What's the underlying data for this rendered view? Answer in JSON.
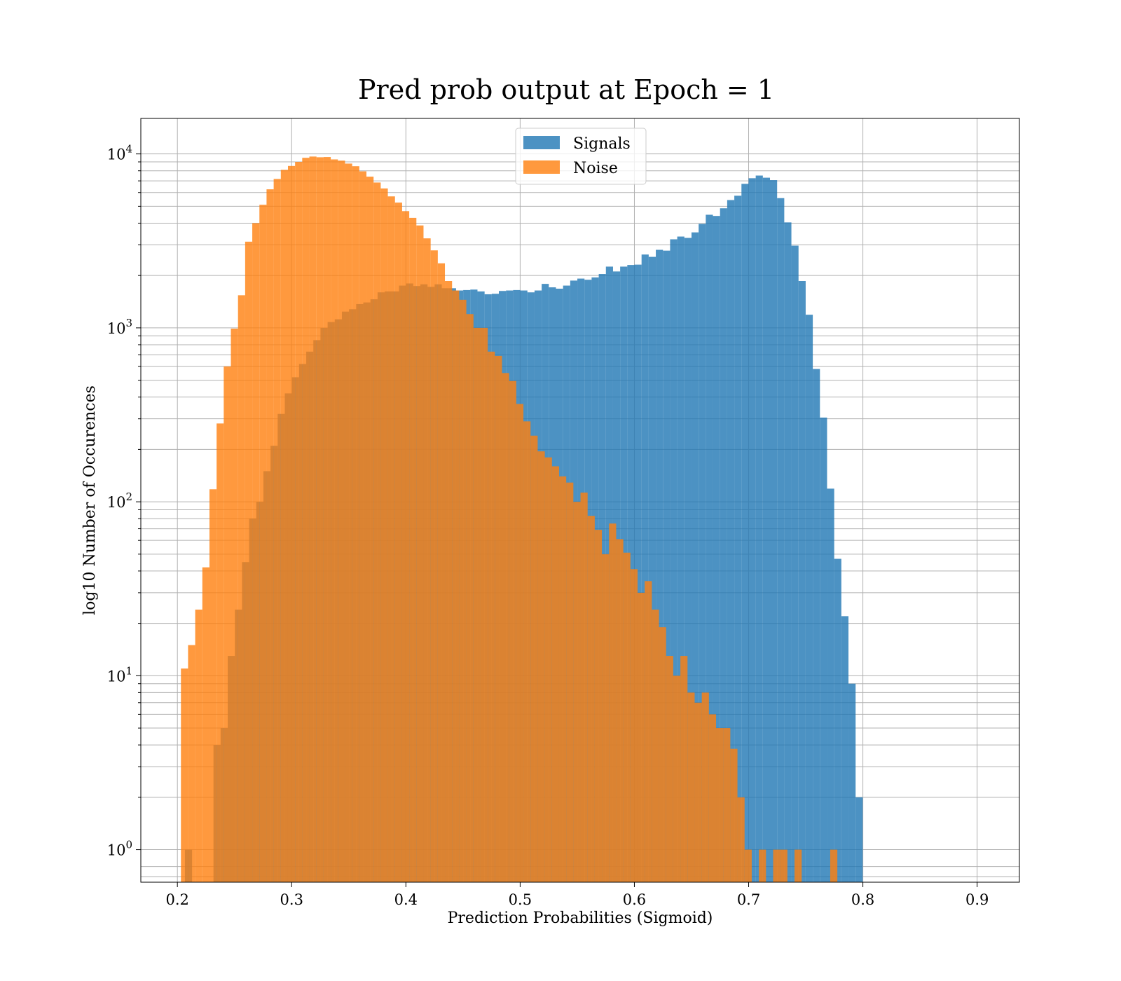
{
  "chart_data": {
    "type": "bar",
    "title": "Pred prob output at Epoch = 1",
    "xlabel": "Prediction Probabilities (Sigmoid)",
    "ylabel": "log10 Number of Occurences",
    "xlim": [
      0.168,
      0.937
    ],
    "ylim": [
      0.65,
      16000
    ],
    "yscale": "log",
    "grid": true,
    "legend_position": "top-center",
    "xticks": [
      0.2,
      0.3,
      0.4,
      0.5,
      0.6,
      0.7,
      0.8,
      0.9
    ],
    "xtick_labels": [
      "0.2",
      "0.3",
      "0.4",
      "0.5",
      "0.6",
      "0.7",
      "0.8",
      "0.9"
    ],
    "yticks": [
      {
        "value": 1,
        "base": "10",
        "exp": "0"
      },
      {
        "value": 10,
        "base": "10",
        "exp": "1"
      },
      {
        "value": 100,
        "base": "10",
        "exp": "2"
      },
      {
        "value": 1000,
        "base": "10",
        "exp": "3"
      },
      {
        "value": 10000,
        "base": "10",
        "exp": "4"
      }
    ],
    "series": [
      {
        "name": "Signals",
        "color": "#1f77b4",
        "opacity": 0.8,
        "bin_start": 0.2066,
        "bin_width": 0.006245,
        "values": [
          1,
          0,
          0,
          0,
          4,
          5,
          13,
          24,
          45,
          80,
          100,
          150,
          210,
          320,
          420,
          520,
          620,
          730,
          850,
          1000,
          1080,
          1120,
          1240,
          1280,
          1370,
          1400,
          1460,
          1600,
          1620,
          1620,
          1750,
          1800,
          1740,
          1780,
          1720,
          1780,
          1690,
          1690,
          1640,
          1650,
          1660,
          1620,
          1560,
          1570,
          1630,
          1640,
          1650,
          1640,
          1600,
          1640,
          1790,
          1710,
          1680,
          1750,
          1870,
          1920,
          1890,
          1950,
          2040,
          2250,
          2110,
          2250,
          2300,
          2310,
          2640,
          2560,
          2810,
          2780,
          3230,
          3350,
          3290,
          3540,
          3960,
          4470,
          4400,
          4870,
          5430,
          5750,
          6730,
          7250,
          7510,
          7300,
          7070,
          5570,
          4040,
          2970,
          1860,
          1190,
          580,
          305,
          119,
          47,
          22,
          9,
          2
        ]
      },
      {
        "name": "Noise",
        "color": "#ff7f0e",
        "opacity": 0.8,
        "bin_start": 0.2031,
        "bin_width": 0.006245,
        "values": [
          11,
          15,
          24,
          42,
          118,
          282,
          600,
          990,
          1540,
          3130,
          4000,
          5100,
          6260,
          7180,
          8100,
          8530,
          9000,
          9500,
          9660,
          9570,
          9600,
          9300,
          9150,
          8800,
          8500,
          7940,
          7400,
          6850,
          6330,
          5700,
          5250,
          4690,
          4290,
          3880,
          3270,
          2790,
          2350,
          1860,
          1640,
          1450,
          1200,
          1000,
          1000,
          730,
          690,
          550,
          495,
          365,
          290,
          240,
          195,
          180,
          160,
          140,
          129,
          100,
          113,
          83,
          69,
          50,
          75,
          61,
          51,
          41,
          30,
          35,
          24,
          19,
          13,
          10,
          13,
          8,
          7,
          8,
          6,
          5,
          5,
          3.8,
          2,
          1,
          0,
          1,
          0,
          1,
          1,
          0,
          1,
          0,
          0,
          0,
          0,
          1
        ]
      }
    ]
  }
}
